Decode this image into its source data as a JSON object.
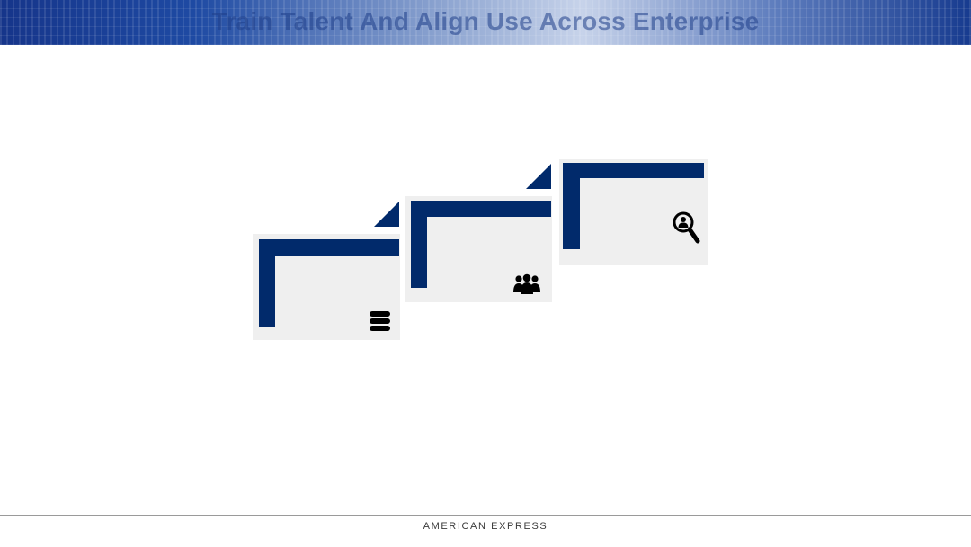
{
  "header": {
    "title": "Train Talent And Align Use Across Enterprise"
  },
  "steps": [
    {
      "icon": "database-icon"
    },
    {
      "icon": "people-group-icon"
    },
    {
      "icon": "magnifier-person-icon"
    }
  ],
  "colors": {
    "accent": "#012a6b",
    "card_bg": "#efefef"
  },
  "footer": {
    "brand": "AMERICAN EXPRESS"
  }
}
